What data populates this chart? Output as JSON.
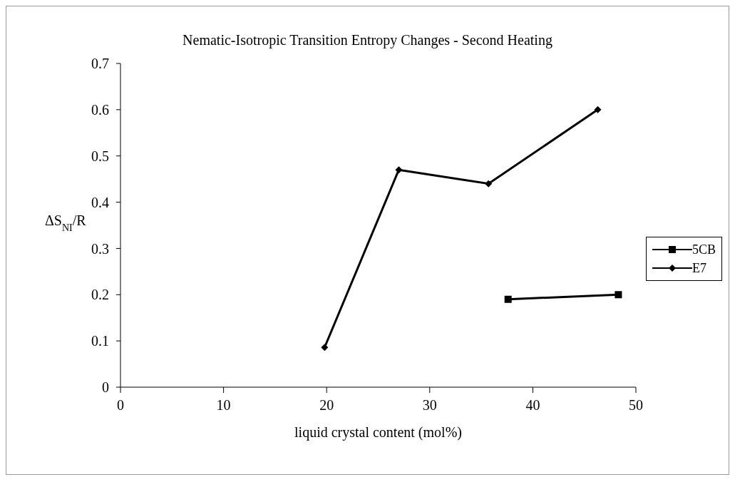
{
  "chart_data": {
    "type": "line",
    "title": "Nematic-Isotropic Transition Entropy Changes - Second Heating",
    "xlabel": "liquid crystal content (mol%)",
    "ylabel": "ΔS$_{NI}$/R",
    "series": [
      {
        "name": "5CB",
        "color": "#000000",
        "marker": "square",
        "x": [
          37.6,
          48.3
        ],
        "values": [
          0.19,
          0.2
        ]
      },
      {
        "name": "E7",
        "color": "#000000",
        "marker": "diamond",
        "x": [
          19.8,
          27,
          35.7,
          46.3
        ],
        "values": [
          0.086,
          0.47,
          0.44,
          0.6
        ]
      }
    ],
    "xlim": [
      0,
      50
    ],
    "xticks": [
      0,
      10,
      20,
      30,
      40,
      50
    ],
    "ylim": [
      0,
      0.7
    ],
    "yticks": [
      0,
      0.1,
      0.2,
      0.3,
      0.4,
      0.5,
      0.6,
      0.7
    ],
    "grid": false,
    "legend": "right",
    "line_style": "solid"
  }
}
